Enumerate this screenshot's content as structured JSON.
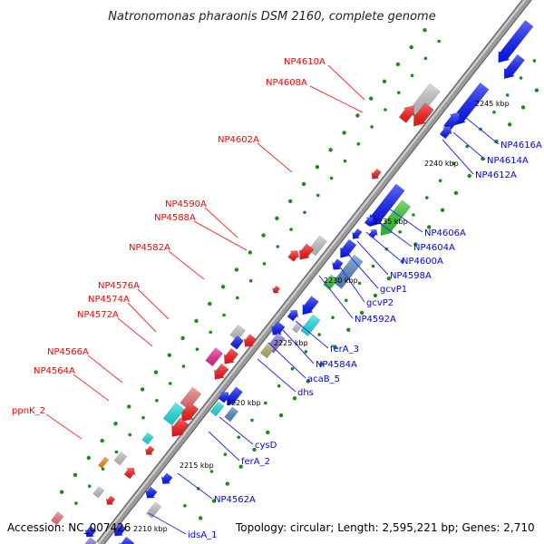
{
  "title": "Natronomonas pharaonis DSM 2160, complete genome",
  "accession": "Accession: NC_007426",
  "topology": "Topology: circular; Length: 2,595,221 bp; Genes: 2,710",
  "colors": {
    "backbone": "#8c8c8c",
    "dots": "#1a8c1a",
    "red": "#ff1a1a",
    "blue": "#0a1aff",
    "cyan": "#1ee6e6",
    "green": "#33cc33",
    "gray": "#c8c8c8",
    "pink": "#f07a7a",
    "magenta": "#ee2a9c",
    "lilac": "#8c7ae6",
    "khaki": "#bfb36b",
    "steel": "#5a8cc8",
    "teal": "#2ac8c8",
    "orange": "#ff8c1a",
    "label_left": "#ff0000",
    "label_right": "#0000ff",
    "leader_left": "#ff3333",
    "leader_right": "#2a2aff"
  },
  "ticks": [
    "2245 kbp",
    "2240 kbp",
    "2235 kbp",
    "2230 kbp",
    "2225 kbp",
    "2220 kbp",
    "2215 kbp",
    "2210 kbp"
  ],
  "labels_left": [
    "NP4610A",
    "NP4608A",
    "NP4602A",
    "NP4590A",
    "NP4588A",
    "NP4582A",
    "NP4576A",
    "NP4574A",
    "NP4572A",
    "NP4566A",
    "NP4564A",
    "ppnK_2"
  ],
  "labels_right": [
    "NP4616A",
    "NP4614A",
    "NP4612A",
    "NP4606A",
    "NP4604A",
    "NP4600A",
    "NP4598A",
    "gcvP1",
    "gcvP2",
    "NP4592A",
    "ferA_3",
    "NP4584A",
    "acaB_5",
    "dhs",
    "cysD",
    "ferA_2",
    "NP4562A",
    "idsA_1"
  ]
}
